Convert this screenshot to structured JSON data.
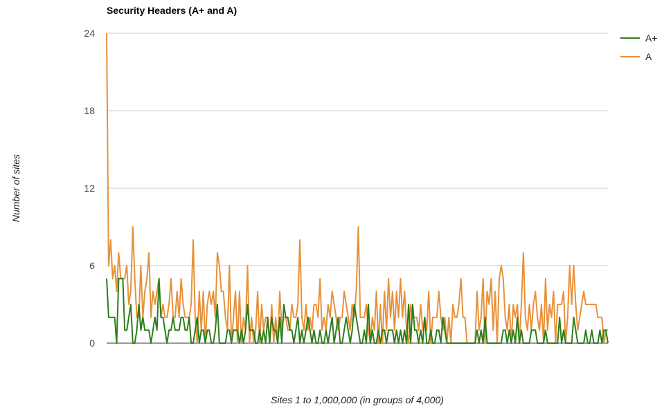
{
  "chart_data": {
    "type": "line",
    "title": "Security Headers (A+ and A)",
    "xlabel": "Sites 1 to 1,000,000 (in groups of 4,000)",
    "ylabel": "Number of sites",
    "ylim": [
      0,
      24
    ],
    "yticks": [
      "0",
      "6",
      "12",
      "18",
      "24"
    ],
    "grid": true,
    "legend": "right",
    "series": [
      {
        "name": "A+",
        "color": "#2e7d1b",
        "values": [
          5,
          2,
          2,
          2,
          2,
          0,
          5,
          5,
          5,
          1,
          1,
          2,
          3,
          0,
          0,
          1,
          3,
          1,
          2,
          1,
          1,
          1,
          0,
          1,
          2,
          1,
          5,
          2,
          2,
          1,
          0,
          1,
          1,
          2,
          1,
          1,
          1,
          2,
          2,
          1,
          1,
          2,
          0,
          0,
          1,
          2,
          0,
          1,
          1,
          0,
          1,
          1,
          0,
          0,
          1,
          3,
          0,
          0,
          0,
          0,
          1,
          1,
          0,
          1,
          1,
          1,
          0,
          1,
          0,
          1,
          3,
          1,
          1,
          1,
          0,
          0,
          1,
          0,
          1,
          0,
          2,
          0,
          2,
          1,
          1,
          0,
          2,
          0,
          3,
          2,
          2,
          1,
          1,
          0,
          1,
          2,
          0,
          1,
          0,
          1,
          2,
          1,
          0,
          1,
          0,
          0,
          1,
          0,
          0,
          1,
          0,
          1,
          2,
          0,
          1,
          2,
          0,
          0,
          1,
          2,
          1,
          0,
          1,
          3,
          2,
          1,
          0,
          0,
          1,
          0,
          3,
          0,
          1,
          0,
          0,
          1,
          0,
          1,
          1,
          0,
          1,
          1,
          1,
          0,
          1,
          0,
          1,
          0,
          1,
          0,
          3,
          0,
          3,
          1,
          1,
          0,
          1,
          0,
          2,
          0,
          0,
          1,
          0,
          0,
          1,
          1,
          0,
          2,
          1,
          0,
          0,
          0,
          0,
          0,
          0,
          0,
          0,
          0,
          0,
          0,
          0,
          0,
          0,
          0,
          1,
          0,
          1,
          0,
          2,
          0,
          0,
          0,
          0,
          0,
          0,
          0,
          0,
          1,
          1,
          0,
          1,
          0,
          1,
          0,
          2,
          0,
          1,
          0,
          0,
          0,
          0,
          1,
          1,
          1,
          0,
          0,
          0,
          0,
          1,
          0,
          0,
          0,
          0,
          0,
          0,
          2,
          0,
          1,
          0,
          0,
          0,
          0,
          2,
          1,
          0,
          0,
          0,
          0,
          1,
          0,
          0,
          1,
          0,
          0,
          0,
          1,
          0,
          1,
          1,
          0
        ]
      },
      {
        "name": "A",
        "color": "#e8913a",
        "values": [
          24,
          6,
          8,
          5,
          6,
          4,
          7,
          5,
          5,
          5,
          6,
          3,
          4,
          9,
          5,
          2,
          2,
          6,
          2,
          4,
          5,
          7,
          2,
          4,
          3,
          4,
          5,
          2,
          3,
          2,
          2,
          3,
          5,
          2,
          2,
          4,
          2,
          5,
          3,
          2,
          2,
          2,
          3,
          8,
          2,
          0,
          4,
          1,
          4,
          0,
          3,
          4,
          3,
          4,
          2,
          7,
          6,
          4,
          4,
          2,
          1,
          6,
          0,
          2,
          4,
          0,
          4,
          0,
          2,
          1,
          6,
          0,
          2,
          0,
          1,
          4,
          0,
          3,
          1,
          2,
          2,
          0,
          3,
          0,
          2,
          0,
          4,
          1,
          2,
          2,
          1,
          1,
          3,
          2,
          2,
          3,
          8,
          2,
          1,
          3,
          1,
          2,
          1,
          3,
          3,
          2,
          5,
          1,
          2,
          1,
          3,
          2,
          4,
          3,
          2,
          1,
          2,
          2,
          4,
          3,
          2,
          1,
          3,
          2,
          4,
          9,
          2,
          2,
          2,
          3,
          1,
          0,
          2,
          1,
          4,
          0,
          3,
          0,
          4,
          1,
          5,
          2,
          4,
          1,
          4,
          2,
          5,
          2,
          4,
          1,
          0,
          3,
          2,
          2,
          2,
          1,
          3,
          1,
          2,
          1,
          4,
          0,
          2,
          2,
          2,
          4,
          2,
          1,
          2,
          0,
          2,
          0,
          3,
          2,
          2,
          3,
          5,
          2,
          2,
          0,
          0,
          0,
          0,
          0,
          4,
          1,
          2,
          5,
          0,
          4,
          3,
          5,
          1,
          4,
          0,
          5,
          6,
          5,
          2,
          1,
          3,
          0,
          3,
          2,
          3,
          0,
          3,
          7,
          2,
          1,
          3,
          1,
          3,
          4,
          2,
          1,
          3,
          0,
          5,
          1,
          3,
          2,
          4,
          0,
          3,
          3,
          3,
          4,
          0,
          2,
          6,
          3,
          6,
          3,
          1,
          2,
          3,
          4,
          3,
          3,
          3,
          3,
          3,
          3,
          2,
          2,
          2,
          0,
          1,
          1
        ]
      }
    ]
  }
}
